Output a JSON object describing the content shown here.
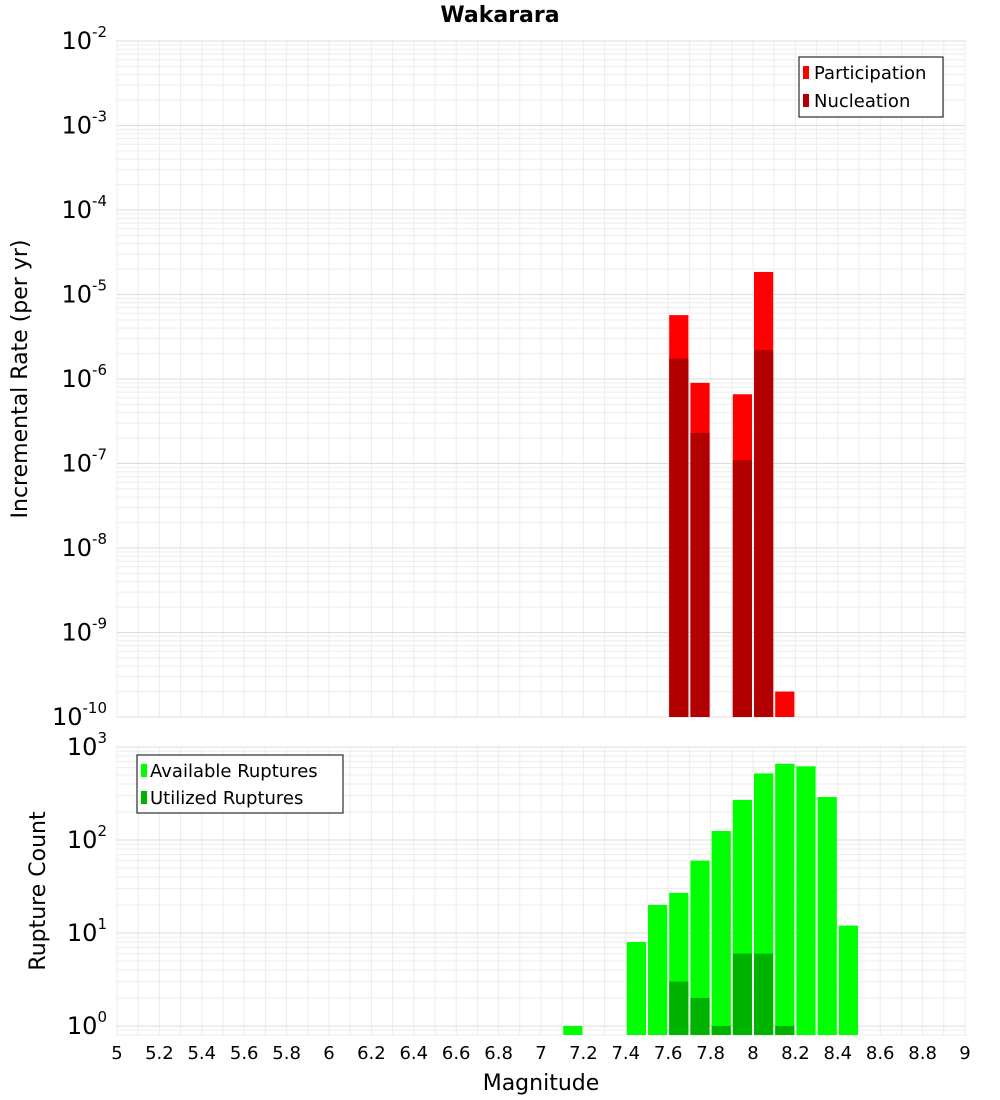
{
  "chart_data": [
    {
      "type": "bar",
      "id": "rate",
      "title": "Wakarara",
      "xlabel": "Magnitude",
      "ylabel": "Incremental Rate (per yr)",
      "yscale": "log",
      "xlim": [
        5,
        9
      ],
      "ylim": [
        1e-10,
        0.01
      ],
      "bin_width": 0.1,
      "ytick_exponents": [
        -2,
        -3,
        -4,
        -5,
        -6,
        -7,
        -8,
        -9,
        -10
      ],
      "legend_position": "top-right",
      "series": [
        {
          "name": "Participation",
          "color": "#ff0000",
          "points": [
            {
              "x": 7.65,
              "y": 5.7e-06
            },
            {
              "x": 7.75,
              "y": 9e-07
            },
            {
              "x": 7.95,
              "y": 6.6e-07
            },
            {
              "x": 8.05,
              "y": 1.85e-05
            },
            {
              "x": 8.15,
              "y": 2e-10
            }
          ]
        },
        {
          "name": "Nucleation",
          "color": "#b20000",
          "points": [
            {
              "x": 7.65,
              "y": 1.75e-06
            },
            {
              "x": 7.75,
              "y": 2.3e-07
            },
            {
              "x": 7.95,
              "y": 1.1e-07
            },
            {
              "x": 8.05,
              "y": 2.2e-06
            }
          ]
        }
      ]
    },
    {
      "type": "bar",
      "id": "count",
      "xlabel": "Magnitude",
      "ylabel": "Rupture Count",
      "yscale": "log",
      "xlim": [
        5,
        9
      ],
      "ylim": [
        0.8,
        1000
      ],
      "bin_width": 0.1,
      "ytick_exponents": [
        3,
        2,
        1,
        0
      ],
      "legend_position": "top-left",
      "xticks": [
        "5",
        "5.2",
        "5.4",
        "5.6",
        "5.8",
        "6",
        "6.2",
        "6.4",
        "6.6",
        "6.8",
        "7",
        "7.2",
        "7.4",
        "7.6",
        "7.8",
        "8",
        "8.2",
        "8.4",
        "8.6",
        "8.8",
        "9"
      ],
      "series": [
        {
          "name": "Available Ruptures",
          "color": "#00ff00",
          "points": [
            {
              "x": 7.15,
              "y": 1
            },
            {
              "x": 7.45,
              "y": 8
            },
            {
              "x": 7.55,
              "y": 20
            },
            {
              "x": 7.65,
              "y": 27
            },
            {
              "x": 7.75,
              "y": 60
            },
            {
              "x": 7.85,
              "y": 125
            },
            {
              "x": 7.95,
              "y": 270
            },
            {
              "x": 8.05,
              "y": 520
            },
            {
              "x": 8.15,
              "y": 660
            },
            {
              "x": 8.25,
              "y": 620
            },
            {
              "x": 8.35,
              "y": 290
            },
            {
              "x": 8.45,
              "y": 12
            }
          ]
        },
        {
          "name": "Utilized Ruptures",
          "color": "#00b200",
          "points": [
            {
              "x": 7.65,
              "y": 3
            },
            {
              "x": 7.75,
              "y": 2
            },
            {
              "x": 7.85,
              "y": 1
            },
            {
              "x": 7.95,
              "y": 6
            },
            {
              "x": 8.05,
              "y": 6
            },
            {
              "x": 8.15,
              "y": 1
            }
          ]
        }
      ]
    }
  ]
}
